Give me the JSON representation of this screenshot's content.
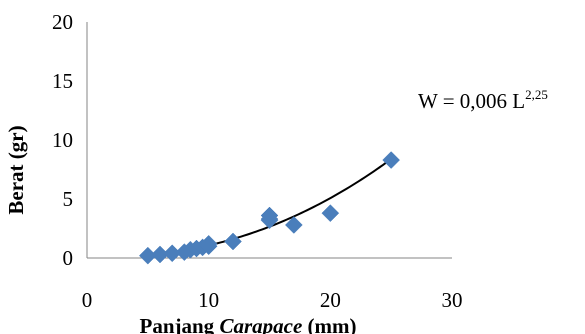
{
  "chart_data": {
    "type": "scatter",
    "xlabel": {
      "prefix": "Panjang ",
      "italic": "Carapace",
      "suffix": " (mm)"
    },
    "ylabel": "Berat (gr)",
    "xlim": [
      0,
      30
    ],
    "ylim": [
      0,
      20
    ],
    "xticks": [
      "0",
      "10",
      "20",
      "30"
    ],
    "yticks": [
      "0",
      "5",
      "10",
      "15",
      "20"
    ],
    "grid": false,
    "legend": "none",
    "marker_color": "#4a7ebb",
    "series": [
      {
        "x": [
          5,
          6,
          7,
          8,
          8.5,
          9,
          9.5,
          10,
          10,
          12,
          15,
          15,
          15,
          17,
          20,
          25
        ],
        "y": [
          0.2,
          0.3,
          0.4,
          0.5,
          0.7,
          0.8,
          0.9,
          1.0,
          1.2,
          1.4,
          3.2,
          3.3,
          3.6,
          2.8,
          3.8,
          8.3
        ]
      }
    ],
    "trendline": {
      "type": "power",
      "coefficient": 0.006,
      "exponent": 2.25,
      "x_range": [
        5,
        24.8
      ]
    },
    "annotation": {
      "base": "W = 0,006 L",
      "superscript": "2,25"
    }
  }
}
